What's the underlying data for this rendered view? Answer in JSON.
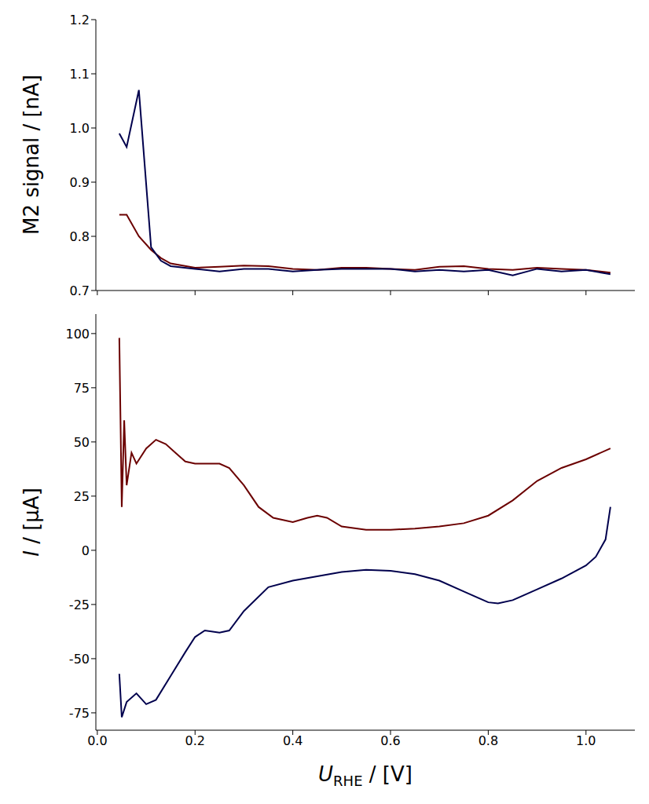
{
  "chart_data": [
    {
      "type": "line",
      "ylabel": "M2 signal / [nA]",
      "xlim": [
        -0.003,
        1.1
      ],
      "xticks": [
        {
          "value": 0,
          "label": "0.0"
        },
        0.2,
        0.4,
        0.6,
        0.8,
        {
          "value": 1,
          "label": "1.0"
        }
      ],
      "ylim": [
        0.7,
        1.2
      ],
      "yticks": [
        0.7,
        0.8,
        0.9,
        {
          "value": 1,
          "label": "1.0"
        },
        1.1,
        1.2
      ],
      "tick_labels": "y",
      "x": [
        0.045,
        0.06,
        0.085,
        0.11,
        0.13,
        0.15,
        0.2,
        0.25,
        0.3,
        0.35,
        0.4,
        0.45,
        0.5,
        0.55,
        0.6,
        0.65,
        0.7,
        0.75,
        0.8,
        0.85,
        0.9,
        0.95,
        1.0,
        1.05
      ],
      "series": [
        {
          "color": "#6b0000",
          "values": [
            0.84,
            0.84,
            0.8,
            0.775,
            0.76,
            0.75,
            0.742,
            0.744,
            0.746,
            0.745,
            0.74,
            0.738,
            0.742,
            0.742,
            0.74,
            0.738,
            0.744,
            0.745,
            0.74,
            0.738,
            0.742,
            0.74,
            0.738,
            0.733
          ]
        },
        {
          "color": "#00004d",
          "values": [
            0.99,
            0.965,
            1.07,
            0.78,
            0.755,
            0.745,
            0.74,
            0.735,
            0.74,
            0.74,
            0.735,
            0.738,
            0.74,
            0.74,
            0.74,
            0.735,
            0.738,
            0.735,
            0.738,
            0.728,
            0.74,
            0.735,
            0.738,
            0.73
          ]
        }
      ]
    },
    {
      "type": "line",
      "ylabel": "I / [µA]",
      "xlabel": {
        "text": "U",
        "subscript": "RHE",
        "suffix": " / [V]"
      },
      "xlim": [
        -0.003,
        1.1
      ],
      "xticks": [
        {
          "value": 0,
          "label": "0.0"
        },
        0.2,
        0.4,
        0.6,
        0.8,
        {
          "value": 1,
          "label": "1.0"
        }
      ],
      "ylim": [
        -83,
        109
      ],
      "yticks": [
        -75,
        -50,
        -25,
        0,
        25,
        50,
        75,
        100
      ],
      "series": [
        {
          "color": "#6b0000",
          "x": [
            0.045,
            0.05,
            0.055,
            0.06,
            0.07,
            0.08,
            0.1,
            0.12,
            0.14,
            0.16,
            0.18,
            0.2,
            0.22,
            0.25,
            0.27,
            0.3,
            0.33,
            0.36,
            0.4,
            0.43,
            0.45,
            0.47,
            0.5,
            0.55,
            0.6,
            0.65,
            0.7,
            0.75,
            0.8,
            0.85,
            0.9,
            0.95,
            1.0,
            1.05
          ],
          "values": [
            98,
            20,
            60,
            30,
            45,
            40,
            47,
            51,
            49,
            45,
            41,
            40,
            40,
            40,
            38,
            30,
            20,
            15,
            13,
            15,
            16,
            15,
            11,
            9.5,
            9.5,
            10,
            11,
            12.5,
            16,
            23,
            32,
            38,
            42,
            47
          ]
        },
        {
          "color": "#00004d",
          "x": [
            1.05,
            1.04,
            1.02,
            1.0,
            0.95,
            0.9,
            0.85,
            0.82,
            0.8,
            0.75,
            0.7,
            0.65,
            0.6,
            0.55,
            0.5,
            0.45,
            0.4,
            0.35,
            0.3,
            0.27,
            0.25,
            0.22,
            0.2,
            0.18,
            0.15,
            0.12,
            0.1,
            0.08,
            0.06,
            0.05,
            0.045
          ],
          "values": [
            20,
            5,
            -3,
            -7,
            -13,
            -18,
            -23,
            -24.5,
            -24,
            -19,
            -14,
            -11,
            -9.5,
            -9,
            -10,
            -12,
            -14,
            -17,
            -28,
            -37,
            -38,
            -37,
            -40,
            -47,
            -58,
            -69,
            -71,
            -66,
            -70,
            -77,
            -57
          ]
        }
      ]
    }
  ]
}
